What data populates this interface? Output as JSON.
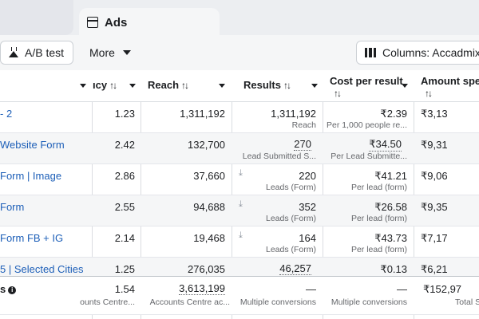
{
  "tabs": {
    "ads_label": "Ads"
  },
  "toolbar": {
    "ab_test_label": "A/B test",
    "more_label": "More",
    "columns_label": "Columns: Accadmix"
  },
  "headers": {
    "frequency": "ıcy",
    "reach": "Reach",
    "results": "Results",
    "cost": "Cost per result",
    "amount": "Amount spen"
  },
  "rows": [
    {
      "name": "- 2",
      "freq": "1.23",
      "reach": "1,311,192",
      "results": "1,311,192",
      "results_sub": "Reach",
      "cost": "₹2.39",
      "cost_sub": "Per 1,000 people re...",
      "amount": "₹3,13"
    },
    {
      "name": "Website Form",
      "freq": "2.42",
      "reach": "132,700",
      "results": "270",
      "results_sub": "Lead Submitted S...",
      "cost": "₹34.50",
      "cost_sub": "Per Lead Submitte...",
      "amount": "₹9,31"
    },
    {
      "name": "Form | Image",
      "freq": "2.86",
      "reach": "37,660",
      "results": "220",
      "results_sub": "Leads (Form)",
      "cost": "₹41.21",
      "cost_sub": "Per lead (form)",
      "amount": "₹9,06"
    },
    {
      "name": "Form",
      "freq": "2.55",
      "reach": "94,688",
      "results": "352",
      "results_sub": "Leads (Form)",
      "cost": "₹26.58",
      "cost_sub": "Per lead (form)",
      "amount": "₹9,35"
    },
    {
      "name": "Form FB + IG",
      "freq": "2.14",
      "reach": "19,468",
      "results": "164",
      "results_sub": "Leads (Form)",
      "cost": "₹43.73",
      "cost_sub": "Per lead (form)",
      "amount": "₹7,17"
    },
    {
      "name": "5 | Selected Cities",
      "freq": "1.25",
      "reach": "276,035",
      "results": "46,257",
      "results_sub": "",
      "cost": "₹0.13",
      "cost_sub": "",
      "amount": "₹6,21"
    }
  ],
  "total": {
    "name": "s",
    "info": "i",
    "freq": "1.54",
    "freq_sub": "ounts Centre...",
    "reach": "3,613,199",
    "reach_sub": "Accounts Centre ac...",
    "results": "—",
    "results_sub": "Multiple conversions",
    "cost": "—",
    "cost_sub": "Multiple conversions",
    "amount": "₹152,97",
    "amount_sub": "Total S"
  }
}
